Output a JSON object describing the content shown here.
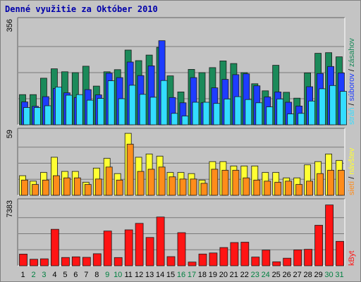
{
  "chart_data": [
    {
      "type": "bar",
      "panel": "top",
      "title": "Denné využitie za Október 2010",
      "y_max_label": "356",
      "ylim": [
        0,
        356
      ],
      "categories": [
        "1",
        "2",
        "3",
        "4",
        "5",
        "6",
        "7",
        "8",
        "9",
        "10",
        "11",
        "12",
        "13",
        "14",
        "15",
        "16",
        "17",
        "18",
        "19",
        "20",
        "21",
        "22",
        "23",
        "24",
        "25",
        "26",
        "27",
        "28",
        "29",
        "30",
        "31"
      ],
      "right_label": {
        "parts": [
          "stráň",
          "súborov",
          "zásahov"
        ],
        "separator": " / "
      },
      "series": [
        {
          "name": "zásahov",
          "color": "#1b8a5a",
          "values": [
            103,
            103,
            159,
            191,
            181,
            178,
            200,
            132,
            181,
            188,
            255,
            219,
            238,
            264,
            167,
            112,
            189,
            178,
            195,
            218,
            209,
            178,
            140,
            116,
            203,
            111,
            91,
            177,
            244,
            246,
            232
          ]
        },
        {
          "name": "súborov",
          "color": "#1e3cff",
          "values": [
            78,
            63,
            96,
            124,
            109,
            93,
            120,
            102,
            176,
            161,
            214,
            168,
            201,
            287,
            93,
            75,
            161,
            75,
            126,
            155,
            171,
            174,
            133,
            95,
            112,
            77,
            64,
            130,
            175,
            199,
            177
          ]
        },
        {
          "name": "stráň",
          "color": "#33ddff",
          "values": [
            59,
            59,
            65,
            129,
            101,
            103,
            84,
            90,
            150,
            89,
            135,
            104,
            94,
            151,
            39,
            30,
            77,
            77,
            73,
            88,
            96,
            86,
            75,
            61,
            88,
            37,
            39,
            81,
            123,
            134,
            114
          ]
        }
      ]
    },
    {
      "type": "bar",
      "panel": "middle",
      "y_max_label": "59",
      "ylim": [
        0,
        59
      ],
      "categories": [
        "1",
        "2",
        "3",
        "4",
        "5",
        "6",
        "7",
        "8",
        "9",
        "10",
        "11",
        "12",
        "13",
        "14",
        "15",
        "16",
        "17",
        "18",
        "19",
        "20",
        "21",
        "22",
        "23",
        "24",
        "25",
        "26",
        "27",
        "28",
        "29",
        "30",
        "31"
      ],
      "right_label": {
        "parts": [
          "sietí",
          "návštev"
        ],
        "separator": " / "
      },
      "series": [
        {
          "name": "návštev",
          "color": "#ffff33",
          "values": [
            18,
            13,
            21,
            35,
            22,
            22,
            12,
            25,
            34,
            20,
            57,
            35,
            38,
            36,
            21,
            21,
            20,
            14,
            31,
            31,
            27,
            27,
            27,
            21,
            21,
            16,
            16,
            28,
            31,
            38,
            32
          ]
        },
        {
          "name": "sietí",
          "color": "#ff8c1a",
          "values": [
            14,
            10,
            14,
            18,
            16,
            16,
            10,
            15,
            26,
            14,
            47,
            22,
            24,
            26,
            17,
            15,
            15,
            11,
            24,
            23,
            23,
            16,
            14,
            13,
            12,
            13,
            10,
            13,
            20,
            23,
            23
          ]
        }
      ]
    },
    {
      "type": "bar",
      "panel": "bottom",
      "y_max_label": "7383",
      "ylim": [
        0,
        7383
      ],
      "categories": [
        "1",
        "2",
        "3",
        "4",
        "5",
        "6",
        "7",
        "8",
        "9",
        "10",
        "11",
        "12",
        "13",
        "14",
        "15",
        "16",
        "17",
        "18",
        "19",
        "20",
        "21",
        "22",
        "23",
        "24",
        "25",
        "26",
        "27",
        "28",
        "29",
        "30",
        "31"
      ],
      "right_label": {
        "parts": [
          "kByt"
        ],
        "separator": ""
      },
      "series": [
        {
          "name": "kByt",
          "color": "#ff1414",
          "values": [
            1350,
            755,
            801,
            4200,
            958,
            1032,
            971,
            1389,
            3997,
            948,
            4140,
            4881,
            3259,
            5611,
            1055,
            3810,
            427,
            1356,
            1480,
            2100,
            2676,
            2714,
            1008,
            1807,
            459,
            873,
            1832,
            1900,
            4667,
            7000,
            2814
          ]
        }
      ]
    }
  ],
  "x_label_colors": {
    "weekday": "#000000",
    "weekend": "#008040"
  },
  "weekend_days": [
    "2",
    "3",
    "9",
    "10",
    "16",
    "17",
    "23",
    "24",
    "30",
    "31"
  ]
}
